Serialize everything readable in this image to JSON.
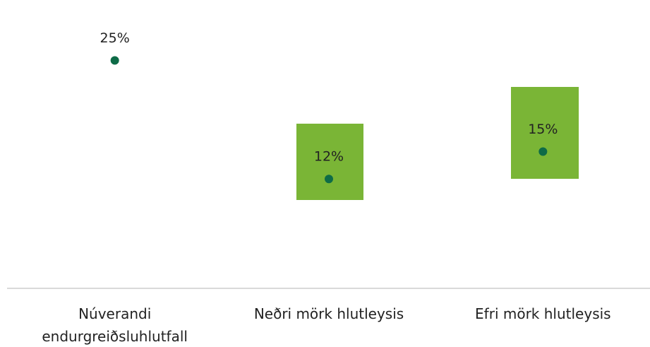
{
  "chart_data": {
    "type": "dot",
    "categories": [
      "Núverandi endurgreiðsluhlutfall",
      "Neðri mörk hlutleysis",
      "Efri mörk hlutleysis"
    ],
    "values": [
      25,
      12,
      15
    ],
    "value_labels": [
      "25%",
      "12%",
      "15%"
    ],
    "color": "#0e6b47",
    "ylim": [
      0,
      30
    ]
  }
}
